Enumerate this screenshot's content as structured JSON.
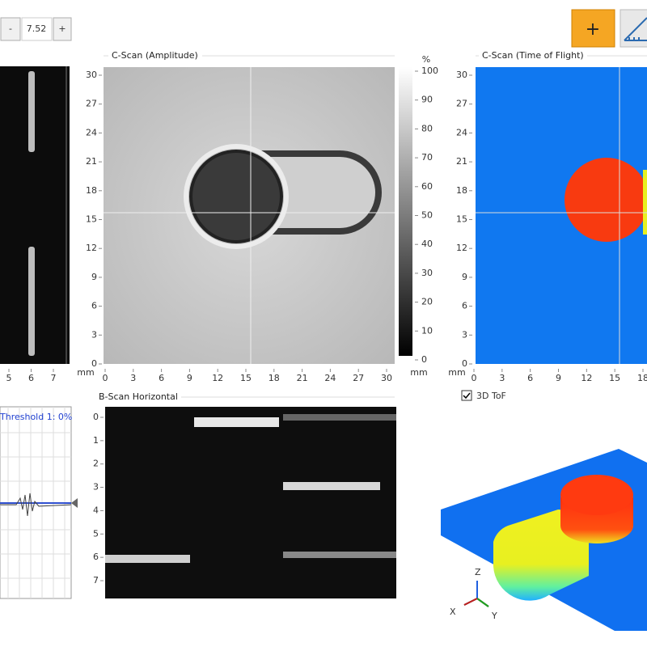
{
  "toolbar": {
    "decrement": "-",
    "value": "7.52",
    "increment": "+",
    "add": "+"
  },
  "side_scan": {
    "x_ticks": [
      5,
      6,
      7
    ]
  },
  "amplitude_scan": {
    "title": "C-Scan (Amplitude)",
    "y_ticks": [
      0,
      3,
      6,
      9,
      12,
      15,
      18,
      21,
      24,
      27,
      30
    ],
    "x_ticks": [
      0,
      3,
      6,
      9,
      12,
      15,
      18,
      21,
      24,
      27,
      30
    ],
    "x_unit": "mm",
    "colorbar_unit": "%",
    "colorbar_ticks": [
      0,
      10,
      20,
      30,
      40,
      50,
      60,
      70,
      80,
      90,
      100
    ],
    "colorbar_bottom_unit": "mm"
  },
  "tof_scan": {
    "title": "C-Scan (Time of Flight)",
    "y_ticks": [
      0,
      3,
      6,
      9,
      12,
      15,
      18,
      21,
      24,
      27,
      30
    ],
    "x_ticks": [
      0,
      3,
      6,
      9,
      12,
      15,
      18
    ],
    "x_unit": "mm",
    "checkbox": "3D ToF"
  },
  "a_scan": {
    "threshold": "Threshold 1: 0%"
  },
  "b_scan": {
    "title": "B-Scan Horizontal",
    "y_ticks": [
      0,
      1,
      2,
      3,
      4,
      5,
      6,
      7
    ]
  },
  "view_3d": {
    "axes": [
      "X",
      "Y",
      "Z"
    ]
  }
}
